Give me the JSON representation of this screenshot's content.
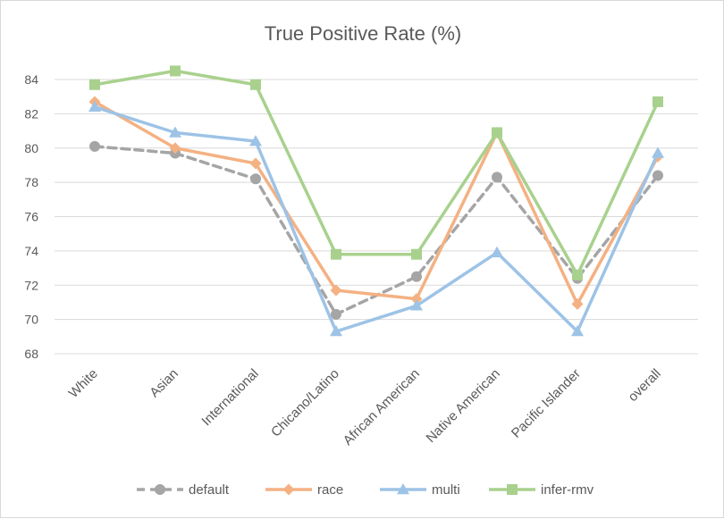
{
  "chart_data": {
    "type": "line",
    "title": "True Positive Rate (%)",
    "xlabel": "",
    "ylabel": "",
    "categories": [
      "White",
      "Asian",
      "International",
      "Chicano/Latino",
      "African American",
      "Native American",
      "Pacific Islander",
      "overall"
    ],
    "ylim": [
      68,
      85
    ],
    "yticks": [
      68,
      70,
      72,
      74,
      76,
      78,
      80,
      82,
      84
    ],
    "grid": true,
    "legend_position": "bottom",
    "series": [
      {
        "name": "default",
        "color": "#a5a5a5",
        "dash": true,
        "marker": "circle",
        "values": [
          80.1,
          79.7,
          78.2,
          70.3,
          72.5,
          78.3,
          72.4,
          78.4
        ]
      },
      {
        "name": "race",
        "color": "#f4b183",
        "dash": false,
        "marker": "diamond",
        "values": [
          82.7,
          80.0,
          79.1,
          71.7,
          71.2,
          80.9,
          70.9,
          79.5
        ]
      },
      {
        "name": "multi",
        "color": "#9dc3e6",
        "dash": false,
        "marker": "triangle",
        "values": [
          82.4,
          80.9,
          80.4,
          69.3,
          70.8,
          73.9,
          69.3,
          79.7
        ]
      },
      {
        "name": "infer-rmv",
        "color": "#a9d18e",
        "dash": false,
        "marker": "square",
        "values": [
          83.7,
          84.5,
          83.7,
          73.8,
          73.8,
          80.9,
          72.6,
          82.7
        ]
      }
    ]
  }
}
